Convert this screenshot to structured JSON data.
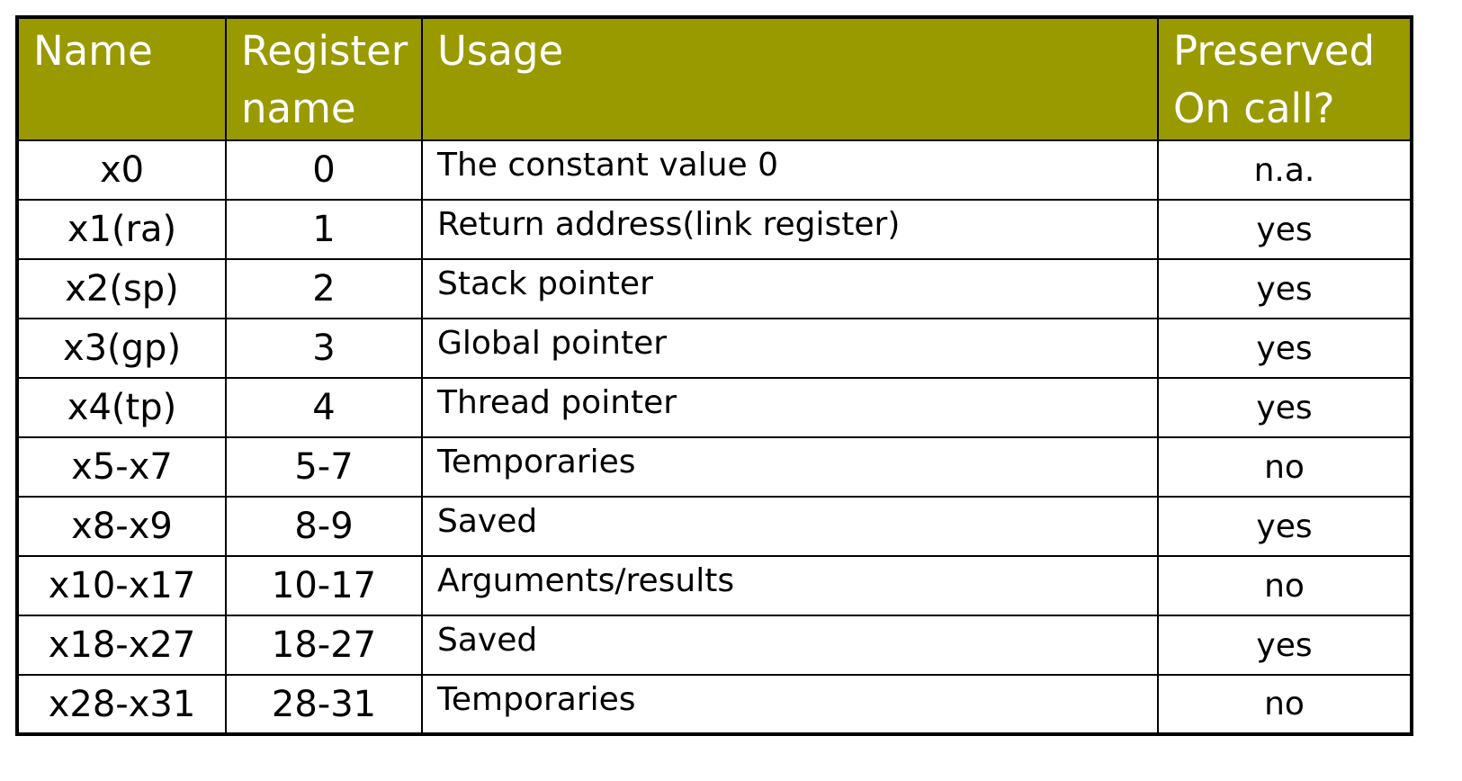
{
  "table": {
    "colors": {
      "header_bg": "#999900",
      "header_text": "#ffffff",
      "border": "#000000"
    },
    "headers": {
      "name": "Name",
      "register_name_line1": "Register",
      "register_name_line2": "name",
      "usage": "Usage",
      "preserved_line1": "Preserved",
      "preserved_line2": "On call?"
    },
    "rows": [
      {
        "name": "x0",
        "number": "0",
        "usage": "The constant value 0",
        "preserved": "n.a."
      },
      {
        "name": "x1(ra)",
        "number": "1",
        "usage": "Return address(link register)",
        "preserved": "yes"
      },
      {
        "name": "x2(sp)",
        "number": "2",
        "usage": "Stack pointer",
        "preserved": "yes"
      },
      {
        "name": "x3(gp)",
        "number": "3",
        "usage": "Global pointer",
        "preserved": "yes"
      },
      {
        "name": "x4(tp)",
        "number": "4",
        "usage": "Thread pointer",
        "preserved": "yes"
      },
      {
        "name": "x5-x7",
        "number": "5-7",
        "usage": "Temporaries",
        "preserved": "no"
      },
      {
        "name": "x8-x9",
        "number": "8-9",
        "usage": "Saved",
        "preserved": "yes"
      },
      {
        "name": "x10-x17",
        "number": "10-17",
        "usage": "Arguments/results",
        "preserved": "no"
      },
      {
        "name": "x18-x27",
        "number": "18-27",
        "usage": "Saved",
        "preserved": "yes"
      },
      {
        "name": "x28-x31",
        "number": "28-31",
        "usage": "Temporaries",
        "preserved": "no"
      }
    ]
  }
}
